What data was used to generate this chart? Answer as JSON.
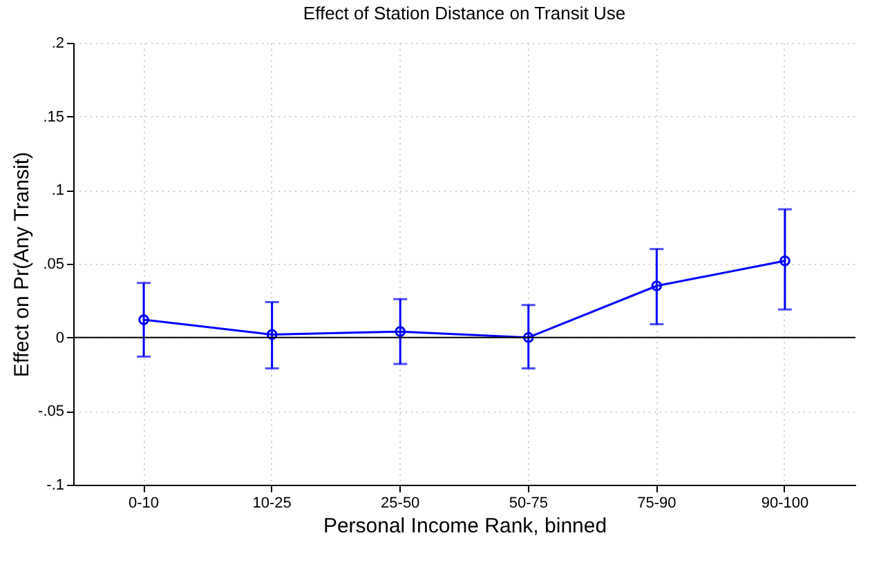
{
  "chart_data": {
    "type": "line",
    "title": "Effect of Station Distance on Transit Use",
    "xlabel": "Personal Income Rank, binned",
    "ylabel": "Effect on Pr(Any Transit)",
    "categories": [
      "0-10",
      "10-25",
      "25-50",
      "50-75",
      "75-90",
      "90-100"
    ],
    "series": [
      {
        "color": "#0000ff",
        "values": [
          0.012,
          0.002,
          0.004,
          0.0,
          0.035,
          0.052
        ],
        "errors": [
          [
            -0.013,
            0.037
          ],
          [
            -0.021,
            0.024
          ],
          [
            -0.018,
            0.026
          ],
          [
            -0.021,
            0.022
          ],
          [
            0.009,
            0.06
          ],
          [
            0.019,
            0.087
          ]
        ]
      }
    ],
    "ylim": [
      -0.1,
      0.2
    ],
    "yticks": [
      {
        "value": -0.1,
        "label": "-.1"
      },
      {
        "value": -0.05,
        "label": "-.05"
      },
      0,
      {
        "value": 0.05,
        "label": ".05"
      },
      {
        "value": 0.1,
        "label": ".1"
      },
      {
        "value": 0.15,
        "label": ".15"
      },
      {
        "value": 0.2,
        "label": ".2"
      }
    ],
    "ref_lines": [
      {
        "axis": "y",
        "value": 0,
        "color": "#000000"
      }
    ],
    "grid": true,
    "marker": "circle",
    "line_style": "solid"
  }
}
